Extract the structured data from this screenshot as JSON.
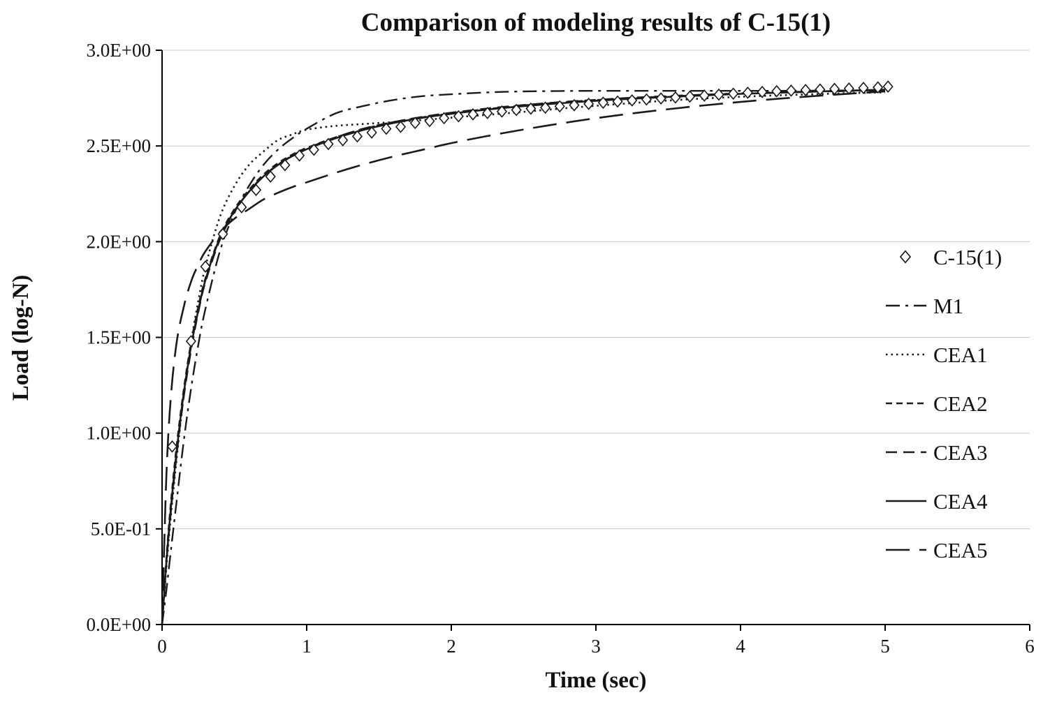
{
  "chart_data": {
    "type": "line",
    "title": "Comparison of modeling results of C-15(1)",
    "xlabel": "Time (sec)",
    "ylabel": "Load (log-N)",
    "xlim": [
      0,
      6
    ],
    "ylim": [
      0,
      3
    ],
    "grid": "horizontal",
    "legend_position": "right-inside",
    "colors": {
      "line": "#1a1a1a",
      "grid": "#c9c9c9",
      "axis": "#000000",
      "marker_fill": "#ffffff"
    },
    "x_ticks": [
      {
        "value": 0,
        "label": "0"
      },
      {
        "value": 1,
        "label": "1"
      },
      {
        "value": 2,
        "label": "2"
      },
      {
        "value": 3,
        "label": "3"
      },
      {
        "value": 4,
        "label": "4"
      },
      {
        "value": 5,
        "label": "5"
      },
      {
        "value": 6,
        "label": "6"
      }
    ],
    "y_ticks": [
      {
        "value": 0.0,
        "label": "0.0E+00"
      },
      {
        "value": 0.5,
        "label": "5.0E-01"
      },
      {
        "value": 1.0,
        "label": "1.0E+00"
      },
      {
        "value": 1.5,
        "label": "1.5E+00"
      },
      {
        "value": 2.0,
        "label": "2.0E+00"
      },
      {
        "value": 2.5,
        "label": "2.5E+00"
      },
      {
        "value": 3.0,
        "label": "3.0E+00"
      }
    ],
    "x": [
      0,
      0.03,
      0.06,
      0.1,
      0.15,
      0.2,
      0.25,
      0.3,
      0.4,
      0.5,
      0.6,
      0.7,
      0.8,
      0.9,
      1.0,
      1.2,
      1.4,
      1.6,
      1.8,
      2.0,
      2.25,
      2.5,
      2.75,
      3.0,
      3.25,
      3.5,
      3.75,
      4.0,
      4.25,
      4.5,
      4.75,
      5.0
    ],
    "series": [
      {
        "name": "C-15(1)",
        "type": "scatter",
        "marker": "diamond-open",
        "points": [
          [
            0.07,
            0.93
          ],
          [
            0.2,
            1.48
          ],
          [
            0.3,
            1.87
          ],
          [
            0.42,
            2.04
          ],
          [
            0.55,
            2.18
          ],
          [
            0.65,
            2.27
          ],
          [
            0.75,
            2.34
          ],
          [
            0.85,
            2.4
          ],
          [
            0.95,
            2.45
          ],
          [
            1.05,
            2.48
          ],
          [
            1.15,
            2.51
          ],
          [
            1.25,
            2.53
          ],
          [
            1.35,
            2.55
          ],
          [
            1.45,
            2.57
          ],
          [
            1.55,
            2.59
          ],
          [
            1.65,
            2.6
          ],
          [
            1.75,
            2.62
          ],
          [
            1.85,
            2.63
          ],
          [
            1.95,
            2.645
          ],
          [
            2.05,
            2.655
          ],
          [
            2.15,
            2.665
          ],
          [
            2.25,
            2.672
          ],
          [
            2.35,
            2.68
          ],
          [
            2.45,
            2.688
          ],
          [
            2.55,
            2.695
          ],
          [
            2.65,
            2.7
          ],
          [
            2.75,
            2.707
          ],
          [
            2.85,
            2.713
          ],
          [
            2.95,
            2.72
          ],
          [
            3.05,
            2.726
          ],
          [
            3.15,
            2.732
          ],
          [
            3.25,
            2.738
          ],
          [
            3.35,
            2.743
          ],
          [
            3.45,
            2.748
          ],
          [
            3.55,
            2.753
          ],
          [
            3.65,
            2.758
          ],
          [
            3.75,
            2.763
          ],
          [
            3.85,
            2.768
          ],
          [
            3.95,
            2.773
          ],
          [
            4.05,
            2.778
          ],
          [
            4.15,
            2.782
          ],
          [
            4.25,
            2.786
          ],
          [
            4.35,
            2.789
          ],
          [
            4.45,
            2.792
          ],
          [
            4.55,
            2.795
          ],
          [
            4.65,
            2.798
          ],
          [
            4.75,
            2.8
          ],
          [
            4.85,
            2.803
          ],
          [
            4.95,
            2.806
          ],
          [
            5.02,
            2.81
          ]
        ]
      },
      {
        "name": "M1",
        "type": "line",
        "dash": [
          20,
          8,
          4,
          8
        ],
        "width": 2.4,
        "y": [
          0,
          0.18,
          0.38,
          0.64,
          0.96,
          1.23,
          1.46,
          1.65,
          1.95,
          2.15,
          2.29,
          2.4,
          2.48,
          2.54,
          2.59,
          2.67,
          2.71,
          2.74,
          2.76,
          2.77,
          2.78,
          2.785,
          2.787,
          2.788,
          2.788,
          2.788,
          2.788,
          2.788,
          2.788,
          2.789,
          2.79,
          2.79
        ]
      },
      {
        "name": "CEA1",
        "type": "line",
        "dash": [
          2.5,
          5
        ],
        "width": 2.6,
        "y": [
          0,
          0.3,
          0.56,
          0.86,
          1.2,
          1.47,
          1.69,
          1.87,
          2.13,
          2.29,
          2.4,
          2.47,
          2.53,
          2.56,
          2.585,
          2.605,
          2.615,
          2.625,
          2.635,
          2.648,
          2.663,
          2.678,
          2.695,
          2.71,
          2.724,
          2.737,
          2.748,
          2.757,
          2.764,
          2.77,
          2.776,
          2.78
        ]
      },
      {
        "name": "CEA2",
        "type": "line",
        "dash": [
          9,
          6
        ],
        "width": 2.4,
        "y": [
          0,
          0.35,
          0.63,
          0.93,
          1.23,
          1.47,
          1.66,
          1.81,
          2.03,
          2.17,
          2.27,
          2.35,
          2.41,
          2.455,
          2.49,
          2.545,
          2.59,
          2.625,
          2.65,
          2.67,
          2.693,
          2.712,
          2.727,
          2.74,
          2.75,
          2.759,
          2.766,
          2.772,
          2.778,
          2.783,
          2.787,
          2.79
        ]
      },
      {
        "name": "CEA3",
        "type": "line",
        "dash": [
          16,
          9
        ],
        "width": 2.4,
        "y": [
          0,
          0.32,
          0.58,
          0.88,
          1.19,
          1.43,
          1.63,
          1.79,
          2.01,
          2.155,
          2.262,
          2.342,
          2.402,
          2.45,
          2.487,
          2.545,
          2.592,
          2.625,
          2.652,
          2.674,
          2.696,
          2.714,
          2.729,
          2.741,
          2.752,
          2.761,
          2.768,
          2.775,
          2.78,
          2.785,
          2.789,
          2.792
        ]
      },
      {
        "name": "CEA4",
        "type": "line",
        "dash": [],
        "width": 2.6,
        "y": [
          0,
          0.33,
          0.6,
          0.9,
          1.21,
          1.45,
          1.64,
          1.8,
          2.02,
          2.16,
          2.26,
          2.34,
          2.4,
          2.447,
          2.483,
          2.54,
          2.585,
          2.62,
          2.647,
          2.668,
          2.69,
          2.708,
          2.723,
          2.736,
          2.747,
          2.756,
          2.764,
          2.772,
          2.778,
          2.784,
          2.789,
          2.794
        ]
      },
      {
        "name": "CEA5",
        "type": "line",
        "dash": [
          34,
          14
        ],
        "width": 2.6,
        "y": [
          0,
          0.78,
          1.18,
          1.47,
          1.66,
          1.79,
          1.88,
          1.95,
          2.05,
          2.12,
          2.17,
          2.22,
          2.255,
          2.285,
          2.31,
          2.36,
          2.405,
          2.445,
          2.48,
          2.515,
          2.552,
          2.586,
          2.617,
          2.645,
          2.67,
          2.692,
          2.712,
          2.73,
          2.746,
          2.76,
          2.773,
          2.785
        ]
      }
    ]
  }
}
